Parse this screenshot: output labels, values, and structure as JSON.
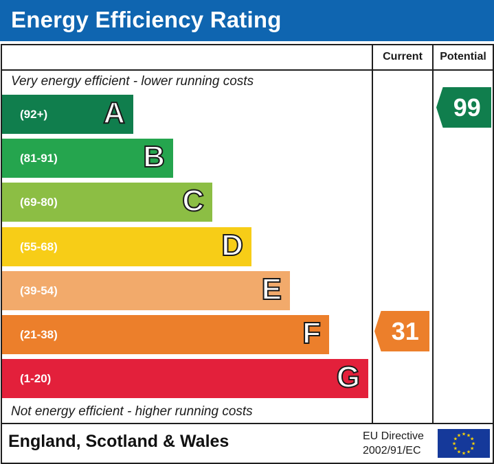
{
  "title": "Energy Efficiency Rating",
  "columns": {
    "current": "Current",
    "potential": "Potential"
  },
  "top_note": "Very energy efficient - lower running costs",
  "bottom_note": "Not energy efficient - higher running costs",
  "bands": [
    {
      "letter": "A",
      "range": "(92+)",
      "color": "#107e4d"
    },
    {
      "letter": "B",
      "range": "(81-91)",
      "color": "#25a54e"
    },
    {
      "letter": "C",
      "range": "(69-80)",
      "color": "#8cbe44"
    },
    {
      "letter": "D",
      "range": "(55-68)",
      "color": "#f7cd17"
    },
    {
      "letter": "E",
      "range": "(39-54)",
      "color": "#f2aa6b"
    },
    {
      "letter": "F",
      "range": "(21-38)",
      "color": "#ec7f2b"
    },
    {
      "letter": "G",
      "range": "(1-20)",
      "color": "#e3203b"
    }
  ],
  "current": {
    "value": "31",
    "band": "F",
    "color": "#ec7f2b"
  },
  "potential": {
    "value": "99",
    "band": "A",
    "color": "#107e4d"
  },
  "footer": {
    "region": "England, Scotland & Wales",
    "directive_line1": "EU Directive",
    "directive_line2": "2002/91/EC",
    "flag_icon": "eu-flag-icon",
    "flag_color": "#15399a",
    "star_color": "#ffd700"
  }
}
